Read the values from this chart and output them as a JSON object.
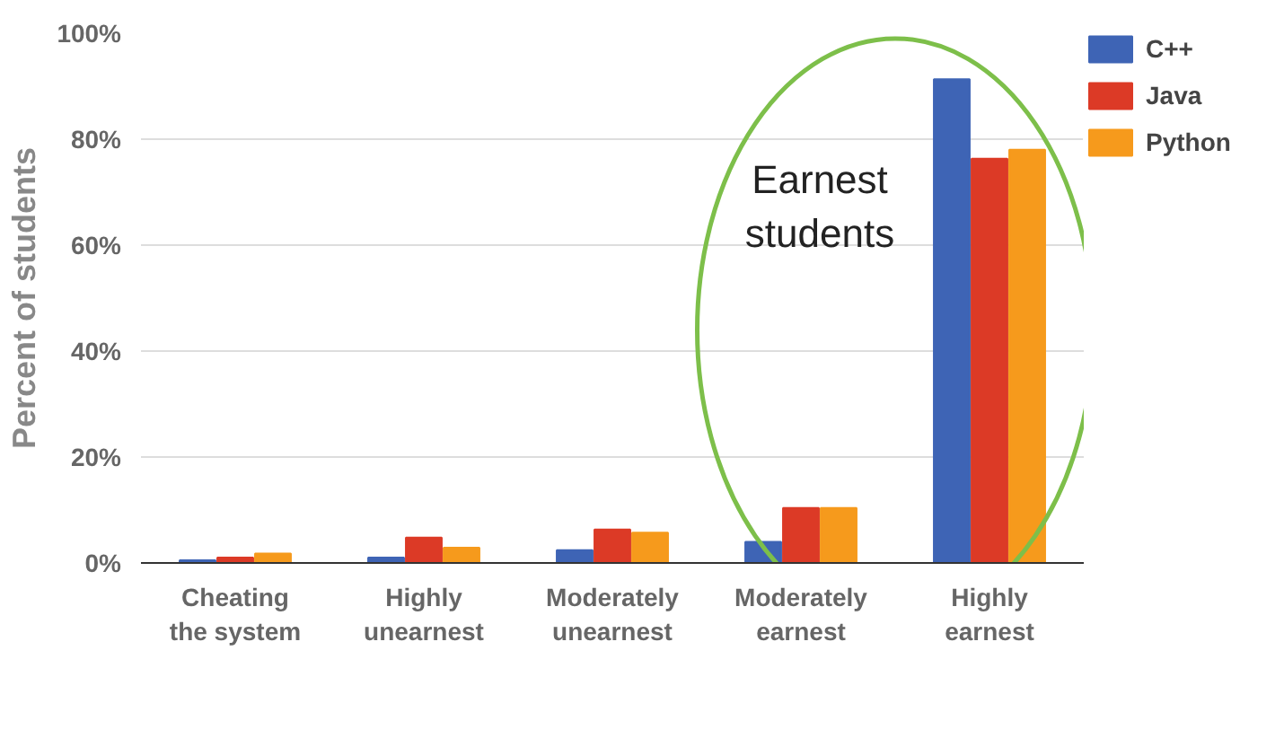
{
  "chart_data": {
    "type": "bar",
    "ylabel": "Percent of students",
    "categories": [
      "Cheating\nthe system",
      "Highly\nunearnest",
      "Moderately\nunearnest",
      "Moderately\nearnest",
      "Highly\nearnest"
    ],
    "series": [
      {
        "name": "C++",
        "color": "#3e64b5",
        "values": [
          0.5,
          1,
          2.4,
          4,
          91.3
        ]
      },
      {
        "name": "Java",
        "color": "#dc3a26",
        "values": [
          1,
          4.8,
          6.3,
          10.4,
          76.3
        ]
      },
      {
        "name": "Python",
        "color": "#f69a1c",
        "values": [
          1.8,
          2.9,
          5.7,
          10.4,
          78
        ]
      }
    ],
    "ylim": [
      0,
      100
    ],
    "yticks": [
      {
        "value": 0,
        "label": "0%"
      },
      {
        "value": 20,
        "label": "20%"
      },
      {
        "value": 40,
        "label": "40%"
      },
      {
        "value": 60,
        "label": "60%"
      },
      {
        "value": 80,
        "label": "80%"
      },
      {
        "value": 100,
        "label": "100%"
      }
    ],
    "grid": "y",
    "legend": "top right",
    "annotations": [
      "Earnest\nstudents"
    ]
  }
}
